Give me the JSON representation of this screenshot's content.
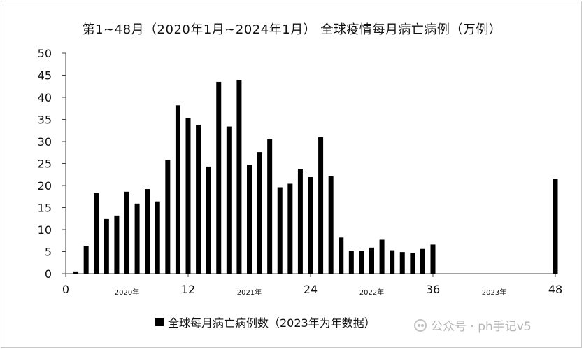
{
  "chart_data": {
    "type": "bar",
    "title": "第1~48月（2020年1月~2024年1月） 全球疫情每月病亡病例（万例）",
    "xlabel": "",
    "ylabel": "",
    "ylim": [
      0,
      50
    ],
    "yticks": [
      0,
      5,
      10,
      15,
      20,
      25,
      30,
      35,
      40,
      45,
      50
    ],
    "xlim": [
      0,
      48
    ],
    "xticks": [
      0,
      12,
      24,
      36,
      48
    ],
    "year_labels": [
      {
        "text": "2020年",
        "x": 6
      },
      {
        "text": "2021年",
        "x": 18
      },
      {
        "text": "2022年",
        "x": 30
      },
      {
        "text": "2023年",
        "x": 42
      }
    ],
    "x": [
      1,
      2,
      3,
      4,
      5,
      6,
      7,
      8,
      9,
      10,
      11,
      12,
      13,
      14,
      15,
      16,
      17,
      18,
      19,
      20,
      21,
      22,
      23,
      24,
      25,
      26,
      27,
      28,
      29,
      30,
      31,
      32,
      33,
      34,
      35,
      36,
      48
    ],
    "values": [
      0.5,
      6.3,
      18.3,
      12.4,
      13.2,
      18.6,
      15.9,
      19.2,
      16.4,
      25.8,
      38.2,
      35.4,
      33.8,
      24.3,
      43.5,
      33.4,
      43.9,
      24.7,
      27.6,
      30.5,
      19.6,
      20.4,
      23.8,
      21.9,
      31.0,
      22.1,
      8.2,
      5.2,
      5.2,
      5.9,
      7.7,
      5.3,
      4.9,
      4.7,
      5.6,
      6.6,
      21.5
    ],
    "grid": false,
    "legend_position": "bottom",
    "legend_label": "全球每月病亡病例数（2023年为年数据）",
    "bar_color": "#000000"
  },
  "watermark": "公众号 · ph手记v5"
}
